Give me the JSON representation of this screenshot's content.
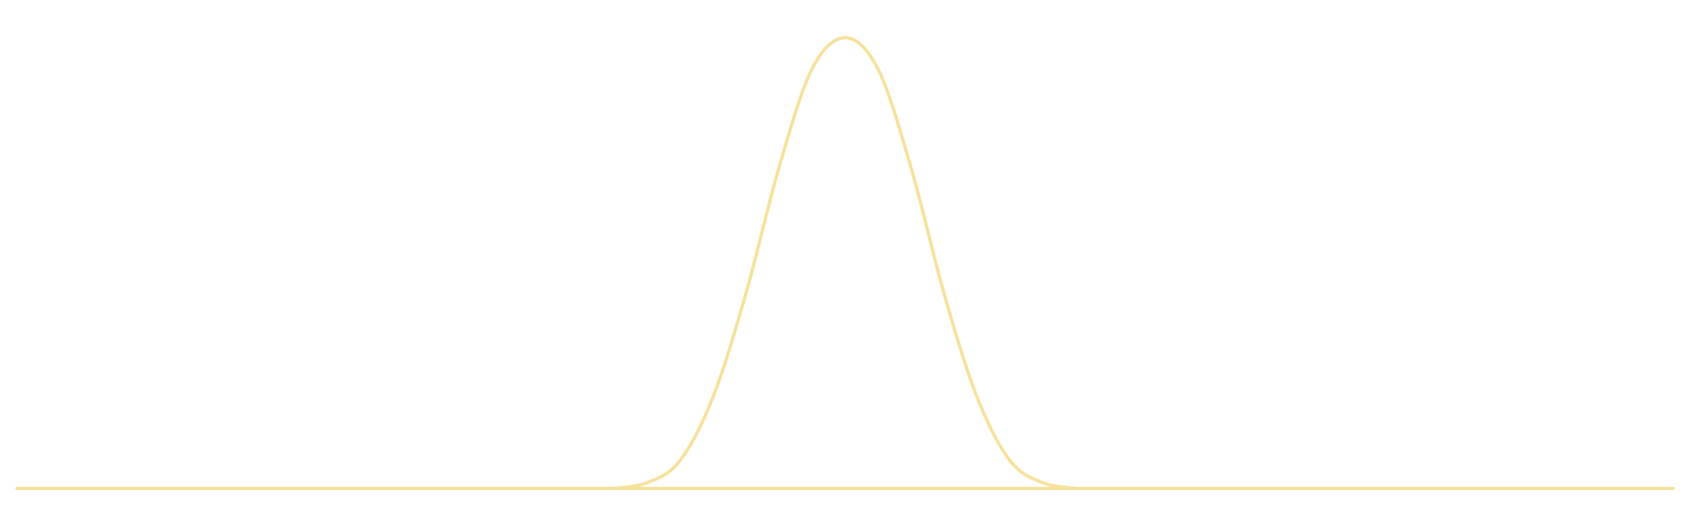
{
  "chart_data": {
    "type": "line",
    "title": "",
    "xlabel": "",
    "ylabel": "",
    "grid": false,
    "legend": "none",
    "line_color": "#f7e19b",
    "x_range": [
      -1,
      1
    ],
    "y_range": [
      0,
      1
    ],
    "series": [
      {
        "x": [
          -0.28,
          -0.24,
          -0.2,
          -0.16,
          -0.12,
          -0.08,
          -0.04,
          0.0,
          0.04,
          0.08,
          0.12,
          0.16,
          0.2,
          0.24,
          0.28
        ],
        "values": [
          0.0,
          0.012,
          0.06,
          0.2,
          0.43,
          0.71,
          0.93,
          1.0,
          0.93,
          0.71,
          0.43,
          0.2,
          0.06,
          0.012,
          0.0
        ]
      }
    ]
  }
}
